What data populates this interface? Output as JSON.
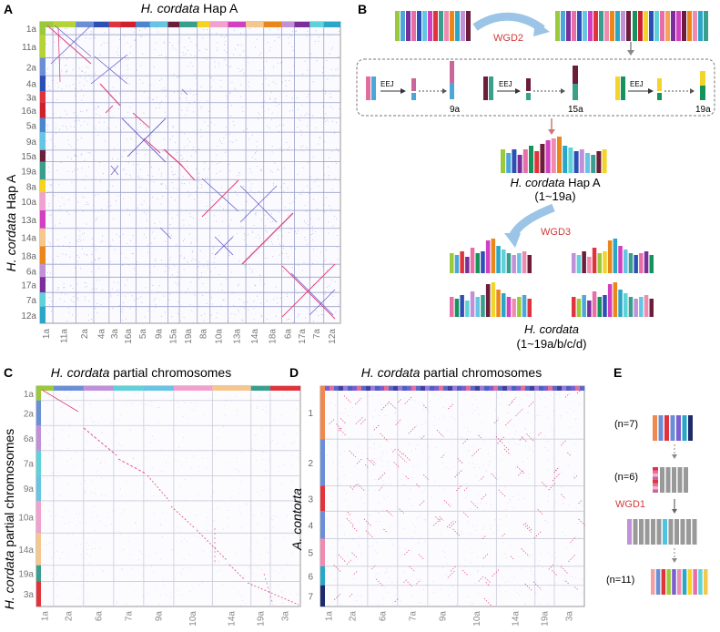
{
  "panels": {
    "A": {
      "letter": "A",
      "title_italic": "H. cordata",
      "title_rest": " Hap A",
      "yaxis_italic": "H. cordata",
      "yaxis_rest": " Hap A",
      "chroms": [
        "1a",
        "11a",
        "2a",
        "4a",
        "3a",
        "16a",
        "5a",
        "9a",
        "15a",
        "19a",
        "8a",
        "10a",
        "13a",
        "14a",
        "18a",
        "6a",
        "17a",
        "7a",
        "12a"
      ],
      "colors": [
        "#9ac93b",
        "#b5d334",
        "#6b8fd6",
        "#2c4fb5",
        "#e0333b",
        "#d0202f",
        "#4b87cf",
        "#66c4e4",
        "#6b1d3a",
        "#3a9e8e",
        "#f5d320",
        "#f2a0d0",
        "#d23fc0",
        "#f6c78d",
        "#e9871a",
        "#c090d8",
        "#7b2e9a",
        "#5fd1d8",
        "#2aa7c7"
      ]
    },
    "B": {
      "letter": "B",
      "wgd2": "WGD2",
      "eej1": "EEJ",
      "eej2": "EEJ",
      "eej3": "EEJ",
      "res1": "9a",
      "res2": "15a",
      "res3": "19a",
      "hapA_italic": "H. cordata",
      "hapA_rest": " Hap A",
      "hapA_range": "(1~19a)",
      "wgd3": "WGD3",
      "final_italic": "H. cordata",
      "final_range": "(1~19a/b/c/d)"
    },
    "C": {
      "letter": "C",
      "title_italic": "H. cordata",
      "title_rest": " partial chromosomes",
      "yaxis_italic": "H. cordata",
      "yaxis_rest": " partial chromosomes",
      "chroms": [
        "1a",
        "2a",
        "6a",
        "7a",
        "9a",
        "10a",
        "14a",
        "19a",
        "3a"
      ],
      "colors": [
        "#9ac93b",
        "#6b8fd6",
        "#c090d8",
        "#5fd1d8",
        "#66c4e4",
        "#f2a0d0",
        "#f6c78d",
        "#3a9e8e",
        "#e0333b"
      ]
    },
    "D": {
      "letter": "D",
      "title_italic": "H. cordata",
      "title_rest": " partial chromosomes",
      "yaxis_italic": "A. contorta",
      "ychroms": [
        "1",
        "2",
        "3",
        "4",
        "5",
        "6",
        "7"
      ],
      "ycolors": [
        "#f0894e",
        "#6b8fd6",
        "#e0333b",
        "#6b8fd6",
        "#f08bb0",
        "#2aa7c7",
        "#1d2a6b"
      ],
      "xchroms": [
        "1a",
        "2a",
        "6a",
        "7a",
        "9a",
        "10a",
        "14a",
        "19a",
        "3a"
      ]
    },
    "E": {
      "letter": "E",
      "n1": "(n=7)",
      "n2": "(n=6)",
      "wgd1": "WGD1",
      "n3": "(n=11)"
    }
  }
}
